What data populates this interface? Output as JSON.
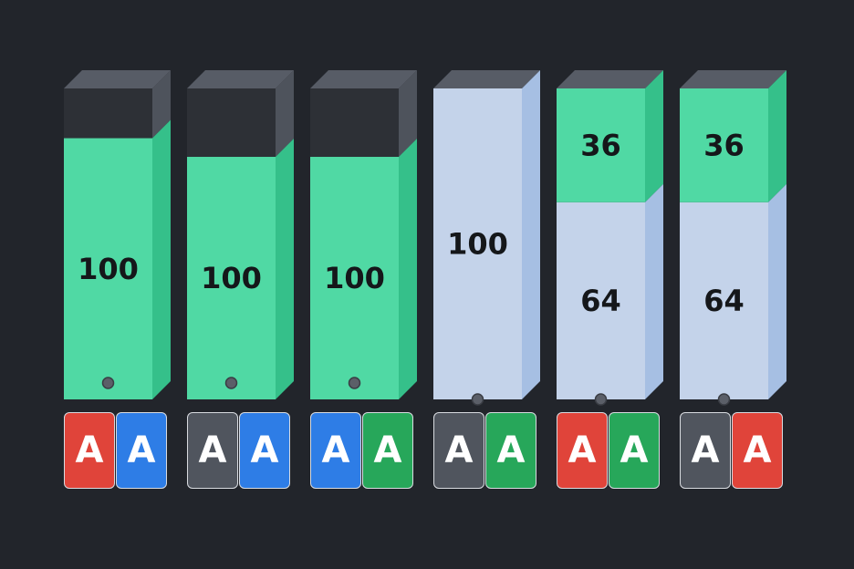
{
  "colors": {
    "background": "#22252b",
    "empty": "#2d3036",
    "empty_side": "#4e535c",
    "top": "#575c66",
    "green": "#50d9a4",
    "green_side": "#35c08a",
    "blue": "#c4d3ea",
    "blue_side": "#a6bfe3",
    "dot": "#5b5f68",
    "card_red": "#e0443a",
    "card_blue": "#2e7de6",
    "card_gray": "#50555e",
    "card_green": "#27a75a"
  },
  "columns": [
    {
      "segments": [
        {
          "color": "green",
          "label": "100",
          "fraction": 0.84
        }
      ],
      "dot": "inside",
      "cards": [
        {
          "letter": "A",
          "color": "card_red"
        },
        {
          "letter": "A",
          "color": "card_blue"
        }
      ]
    },
    {
      "segments": [
        {
          "color": "green",
          "label": "100",
          "fraction": 0.78
        }
      ],
      "dot": "inside",
      "cards": [
        {
          "letter": "A",
          "color": "card_gray"
        },
        {
          "letter": "A",
          "color": "card_blue"
        }
      ]
    },
    {
      "segments": [
        {
          "color": "green",
          "label": "100",
          "fraction": 0.78
        }
      ],
      "dot": "inside",
      "cards": [
        {
          "letter": "A",
          "color": "card_blue"
        },
        {
          "letter": "A",
          "color": "card_green"
        }
      ]
    },
    {
      "segments": [
        {
          "color": "blue",
          "label": "100",
          "fraction": 1.0
        }
      ],
      "dot": "edge",
      "cards": [
        {
          "letter": "A",
          "color": "card_gray"
        },
        {
          "letter": "A",
          "color": "card_green"
        }
      ]
    },
    {
      "segments": [
        {
          "color": "blue",
          "label": "64",
          "fraction": 0.634
        },
        {
          "color": "green",
          "label": "36",
          "fraction": 0.366
        }
      ],
      "dot": "edge",
      "cards": [
        {
          "letter": "A",
          "color": "card_red"
        },
        {
          "letter": "A",
          "color": "card_green"
        }
      ]
    },
    {
      "segments": [
        {
          "color": "blue",
          "label": "64",
          "fraction": 0.634
        },
        {
          "color": "green",
          "label": "36",
          "fraction": 0.366
        }
      ],
      "dot": "edge",
      "cards": [
        {
          "letter": "A",
          "color": "card_gray"
        },
        {
          "letter": "A",
          "color": "card_red"
        }
      ]
    }
  ]
}
